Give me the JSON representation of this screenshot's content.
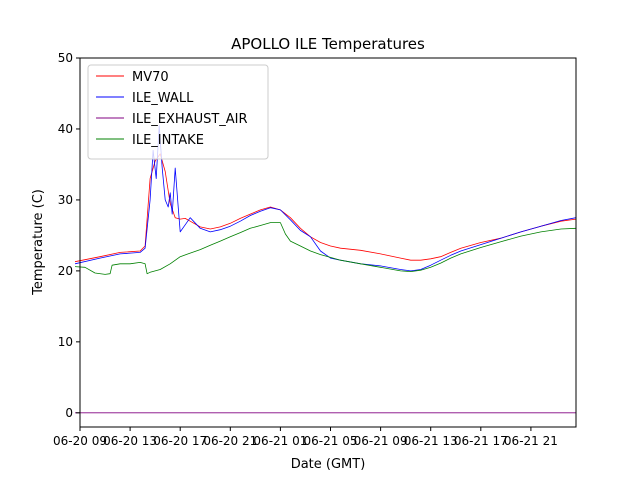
{
  "chart_data": {
    "type": "line",
    "title": "APOLLO ILE Temperatures",
    "xlabel": "Date (GMT)",
    "ylabel": "Temperature (C)",
    "ylim": [
      -2,
      50
    ],
    "yticks": [
      0,
      10,
      20,
      30,
      40,
      50
    ],
    "xlim": [
      0,
      49.5
    ],
    "xticks": [
      {
        "label": "06-20 09",
        "x": 0
      },
      {
        "label": "06-20 13",
        "x": 5
      },
      {
        "label": "06-20 17",
        "x": 10
      },
      {
        "label": "06-20 21",
        "x": 15
      },
      {
        "label": "06-21 01",
        "x": 20
      },
      {
        "label": "06-21 05",
        "x": 25
      },
      {
        "label": "06-21 09",
        "x": 30
      },
      {
        "label": "06-21 13",
        "x": 35
      },
      {
        "label": "06-21 17",
        "x": 40
      },
      {
        "label": "06-21 21",
        "x": 45
      }
    ],
    "legend_position": "top-left",
    "series": [
      {
        "name": "MV70",
        "color": "#ff0000",
        "points": [
          [
            -0.5,
            21.3
          ],
          [
            2,
            22.0
          ],
          [
            4,
            22.6
          ],
          [
            6,
            22.8
          ],
          [
            6.5,
            23.5
          ],
          [
            7,
            33.0
          ],
          [
            7.5,
            35.5
          ],
          [
            8,
            36.5
          ],
          [
            8.5,
            34.0
          ],
          [
            9,
            29.5
          ],
          [
            9.5,
            27.5
          ],
          [
            10,
            27.3
          ],
          [
            10.5,
            27.4
          ],
          [
            11,
            27.0
          ],
          [
            12,
            26.2
          ],
          [
            13,
            25.9
          ],
          [
            14,
            26.2
          ],
          [
            15,
            26.7
          ],
          [
            16,
            27.4
          ],
          [
            17,
            28.0
          ],
          [
            18,
            28.6
          ],
          [
            19,
            29.0
          ],
          [
            20,
            28.6
          ],
          [
            21,
            27.5
          ],
          [
            22,
            26.0
          ],
          [
            23,
            24.8
          ],
          [
            24,
            24.0
          ],
          [
            25,
            23.5
          ],
          [
            26,
            23.2
          ],
          [
            28,
            22.9
          ],
          [
            30,
            22.4
          ],
          [
            32,
            21.8
          ],
          [
            33,
            21.5
          ],
          [
            34,
            21.5
          ],
          [
            35,
            21.7
          ],
          [
            36,
            22.0
          ],
          [
            37,
            22.6
          ],
          [
            38,
            23.2
          ],
          [
            40,
            24.0
          ],
          [
            42,
            24.6
          ],
          [
            44,
            25.5
          ],
          [
            46,
            26.3
          ],
          [
            48,
            27.0
          ],
          [
            49.5,
            27.3
          ]
        ]
      },
      {
        "name": "ILE_WALL",
        "color": "#0000ff",
        "points": [
          [
            -0.5,
            21.0
          ],
          [
            2,
            21.8
          ],
          [
            4,
            22.4
          ],
          [
            6,
            22.6
          ],
          [
            6.5,
            23.2
          ],
          [
            7,
            30.0
          ],
          [
            7.3,
            37.0
          ],
          [
            7.6,
            33.0
          ],
          [
            7.9,
            40.5
          ],
          [
            8.2,
            34.5
          ],
          [
            8.5,
            30.0
          ],
          [
            8.8,
            29.0
          ],
          [
            9,
            31.0
          ],
          [
            9.2,
            28.0
          ],
          [
            9.5,
            34.5
          ],
          [
            9.8,
            29.0
          ],
          [
            10,
            25.5
          ],
          [
            10.5,
            26.5
          ],
          [
            11,
            27.5
          ],
          [
            12,
            26.0
          ],
          [
            13,
            25.5
          ],
          [
            14,
            25.8
          ],
          [
            15,
            26.3
          ],
          [
            16,
            27.0
          ],
          [
            17,
            27.8
          ],
          [
            18,
            28.4
          ],
          [
            19,
            28.9
          ],
          [
            20,
            28.6
          ],
          [
            21,
            27.2
          ],
          [
            22,
            25.7
          ],
          [
            23,
            24.8
          ],
          [
            24,
            22.8
          ],
          [
            25,
            21.8
          ],
          [
            26,
            21.5
          ],
          [
            28,
            21.0
          ],
          [
            30,
            20.7
          ],
          [
            32,
            20.2
          ],
          [
            33,
            20.0
          ],
          [
            34,
            20.2
          ],
          [
            35,
            20.8
          ],
          [
            36,
            21.5
          ],
          [
            37,
            22.2
          ],
          [
            38,
            22.8
          ],
          [
            40,
            23.7
          ],
          [
            42,
            24.6
          ],
          [
            44,
            25.5
          ],
          [
            46,
            26.3
          ],
          [
            48,
            27.1
          ],
          [
            49.5,
            27.5
          ]
        ]
      },
      {
        "name": "ILE_EXHAUST_AIR",
        "color": "#800080",
        "points": [
          [
            -0.5,
            0
          ],
          [
            49.5,
            0
          ]
        ]
      },
      {
        "name": "ILE_INTAKE",
        "color": "#008000",
        "points": [
          [
            -0.5,
            20.6
          ],
          [
            0.5,
            20.5
          ],
          [
            1.5,
            19.7
          ],
          [
            2.5,
            19.5
          ],
          [
            3,
            19.6
          ],
          [
            3.2,
            20.8
          ],
          [
            4,
            21.0
          ],
          [
            5,
            21.0
          ],
          [
            6,
            21.2
          ],
          [
            6.5,
            21.0
          ],
          [
            6.7,
            19.6
          ],
          [
            7,
            19.8
          ],
          [
            8,
            20.2
          ],
          [
            9,
            21.0
          ],
          [
            10,
            22.0
          ],
          [
            11,
            22.5
          ],
          [
            12,
            23.0
          ],
          [
            13,
            23.6
          ],
          [
            14,
            24.2
          ],
          [
            15,
            24.8
          ],
          [
            16,
            25.4
          ],
          [
            17,
            26.0
          ],
          [
            18,
            26.4
          ],
          [
            19,
            26.8
          ],
          [
            20,
            26.8
          ],
          [
            20.5,
            25.2
          ],
          [
            21,
            24.2
          ],
          [
            22,
            23.5
          ],
          [
            23,
            22.8
          ],
          [
            24,
            22.3
          ],
          [
            25,
            21.9
          ],
          [
            26,
            21.5
          ],
          [
            28,
            21.0
          ],
          [
            30,
            20.5
          ],
          [
            32,
            20.0
          ],
          [
            33,
            19.9
          ],
          [
            34,
            20.1
          ],
          [
            35,
            20.5
          ],
          [
            36,
            21.1
          ],
          [
            37,
            21.8
          ],
          [
            38,
            22.4
          ],
          [
            40,
            23.3
          ],
          [
            42,
            24.1
          ],
          [
            44,
            24.9
          ],
          [
            46,
            25.5
          ],
          [
            48,
            25.9
          ],
          [
            49.5,
            26.0
          ]
        ]
      }
    ]
  }
}
